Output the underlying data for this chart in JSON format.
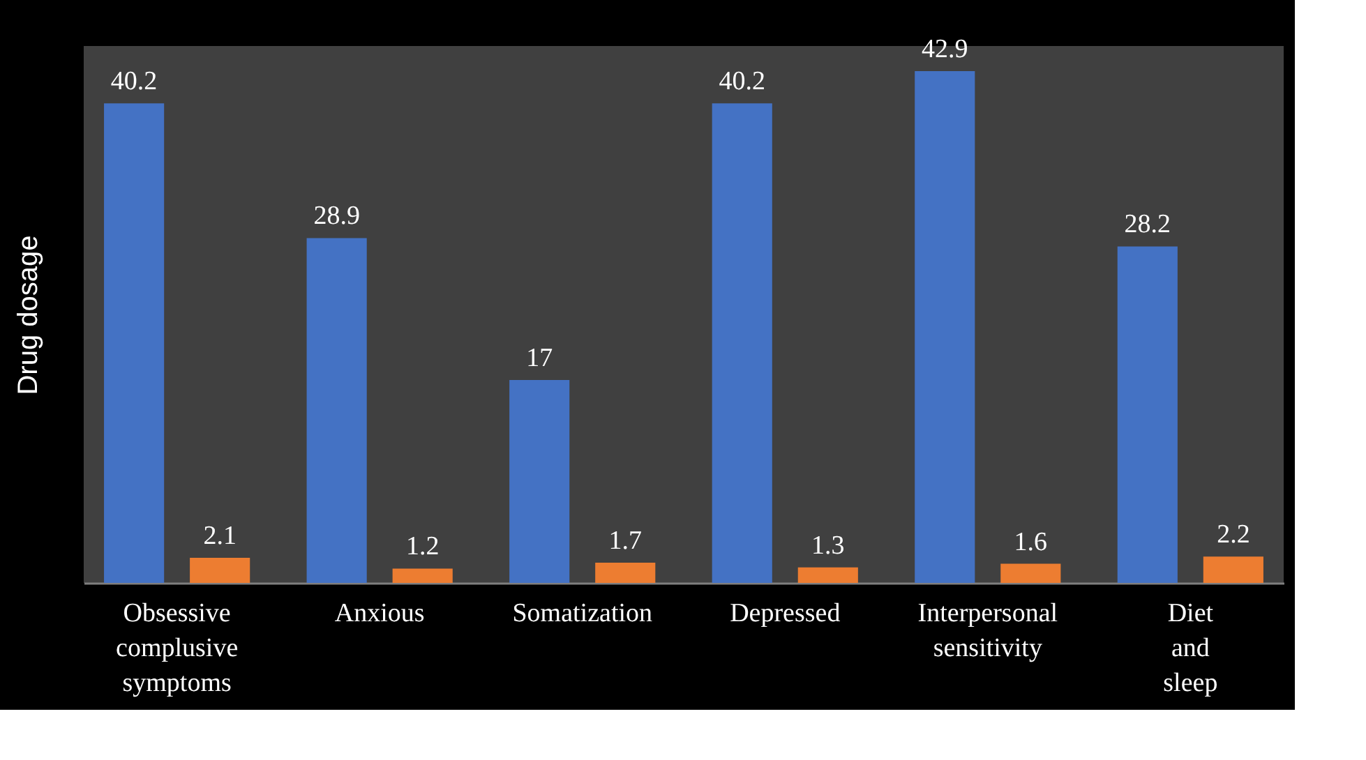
{
  "chart_data": {
    "type": "bar",
    "ylabel": "Drug dosage",
    "categories": [
      "Obsessive complusive symptoms",
      "Anxious",
      "Somatization",
      "Depressed",
      "Interpersonal sensitivity",
      "Diet and sleep"
    ],
    "series": [
      {
        "color": "#4472c4",
        "values": [
          40.2,
          28.9,
          17,
          40.2,
          42.9,
          28.2
        ]
      },
      {
        "color": "#ed7d31",
        "values": [
          2.1,
          1.2,
          1.7,
          1.3,
          1.6,
          2.2
        ]
      }
    ],
    "data_labels": true,
    "tick_labels": "x",
    "grid": false,
    "legend": false
  }
}
